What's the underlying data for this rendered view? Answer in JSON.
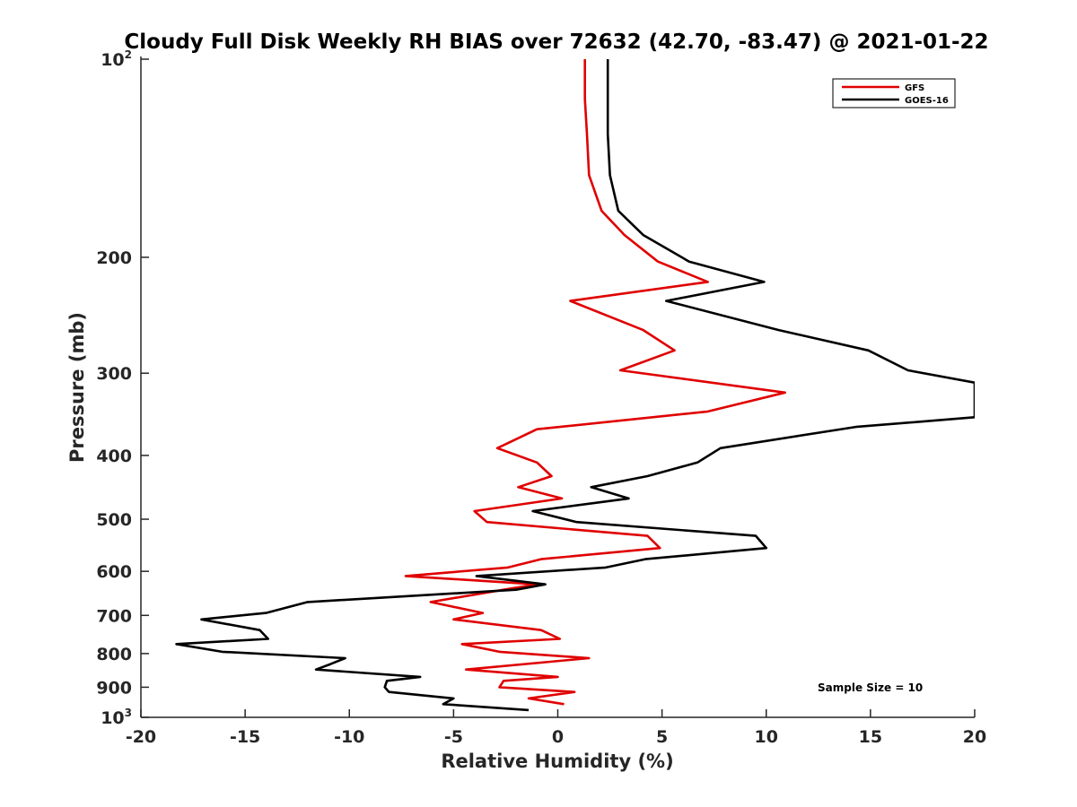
{
  "chart_data": {
    "type": "line",
    "title": "Cloudy Full Disk Weekly RH BIAS over 72632 (42.70, -83.47) @ 2021-01-22",
    "xlabel": "Relative Humidity (%)",
    "ylabel": "Pressure (mb)",
    "xlim": [
      -20,
      20
    ],
    "ylim": [
      1000,
      100
    ],
    "yscale": "log",
    "y_reversed": true,
    "grid": false,
    "legend_position": "top-right",
    "xticks": [
      -20,
      -15,
      -10,
      -5,
      0,
      5,
      10,
      15,
      20
    ],
    "xtick_labels": [
      "-20",
      "-15",
      "-10",
      "-5",
      "0",
      "5",
      "10",
      "15",
      "20"
    ],
    "yticks": [
      {
        "value": 100,
        "base": "10",
        "sup": "2"
      },
      {
        "value": 200,
        "label": "200"
      },
      {
        "value": 300,
        "label": "300"
      },
      {
        "value": 400,
        "label": "400"
      },
      {
        "value": 500,
        "label": "500"
      },
      {
        "value": 600,
        "label": "600"
      },
      {
        "value": 700,
        "label": "700"
      },
      {
        "value": 800,
        "label": "800"
      },
      {
        "value": 900,
        "label": "900"
      },
      {
        "value": 1000,
        "base": "10",
        "sup": "3"
      }
    ],
    "annotation": "Sample Size = 10",
    "series": [
      {
        "name": "GFS",
        "color": "#e00000",
        "points": [
          [
            1.3,
            100
          ],
          [
            1.3,
            115
          ],
          [
            1.4,
            130
          ],
          [
            1.5,
            150
          ],
          [
            2.1,
            170
          ],
          [
            3.2,
            185
          ],
          [
            4.8,
            203
          ],
          [
            7.2,
            218
          ],
          [
            0.6,
            233
          ],
          [
            4.1,
            258
          ],
          [
            5.6,
            277
          ],
          [
            3.0,
            297
          ],
          [
            10.9,
            321
          ],
          [
            7.2,
            343
          ],
          [
            -1.0,
            365
          ],
          [
            -2.9,
            390
          ],
          [
            -1.0,
            410
          ],
          [
            -0.3,
            430
          ],
          [
            -1.9,
            447
          ],
          [
            0.2,
            465
          ],
          [
            -4.0,
            486
          ],
          [
            -3.4,
            505
          ],
          [
            4.3,
            530
          ],
          [
            4.9,
            553
          ],
          [
            -0.8,
            575
          ],
          [
            -2.4,
            592
          ],
          [
            -7.3,
            610
          ],
          [
            -1.0,
            628
          ],
          [
            -2.6,
            640
          ],
          [
            -6.1,
            668
          ],
          [
            -3.6,
            694
          ],
          [
            -5.0,
            710
          ],
          [
            -0.8,
            737
          ],
          [
            0.1,
            760
          ],
          [
            -4.6,
            774
          ],
          [
            -2.8,
            795
          ],
          [
            1.5,
            813
          ],
          [
            -4.4,
            846
          ],
          [
            0.0,
            868
          ],
          [
            -2.6,
            880
          ],
          [
            -2.8,
            900
          ],
          [
            0.8,
            915
          ],
          [
            -1.4,
            936
          ],
          [
            0.3,
            955
          ]
        ]
      },
      {
        "name": "GOES-16",
        "color": "#000000",
        "points": [
          [
            2.4,
            100
          ],
          [
            2.4,
            115
          ],
          [
            2.4,
            130
          ],
          [
            2.5,
            150
          ],
          [
            2.9,
            170
          ],
          [
            4.1,
            185
          ],
          [
            6.3,
            203
          ],
          [
            9.9,
            218
          ],
          [
            5.2,
            233
          ],
          [
            10.6,
            258
          ],
          [
            14.9,
            277
          ],
          [
            16.8,
            297
          ],
          [
            20.0,
            310
          ],
          [
            20.0,
            350
          ],
          [
            14.3,
            362
          ],
          [
            7.8,
            390
          ],
          [
            6.7,
            410
          ],
          [
            4.3,
            430
          ],
          [
            1.6,
            447
          ],
          [
            3.4,
            465
          ],
          [
            -1.2,
            486
          ],
          [
            0.9,
            505
          ],
          [
            9.5,
            530
          ],
          [
            10.0,
            553
          ],
          [
            4.2,
            575
          ],
          [
            2.3,
            592
          ],
          [
            -3.9,
            610
          ],
          [
            -0.6,
            628
          ],
          [
            -2.0,
            640
          ],
          [
            -12.0,
            668
          ],
          [
            -14.0,
            694
          ],
          [
            -17.1,
            710
          ],
          [
            -14.3,
            737
          ],
          [
            -13.9,
            760
          ],
          [
            -18.3,
            774
          ],
          [
            -16.1,
            795
          ],
          [
            -10.2,
            813
          ],
          [
            -10.9,
            830
          ],
          [
            -11.6,
            846
          ],
          [
            -6.6,
            868
          ],
          [
            -8.2,
            880
          ],
          [
            -8.3,
            900
          ],
          [
            -8.1,
            915
          ],
          [
            -5.0,
            936
          ],
          [
            -5.5,
            955
          ],
          [
            -1.4,
            975
          ]
        ]
      }
    ]
  }
}
